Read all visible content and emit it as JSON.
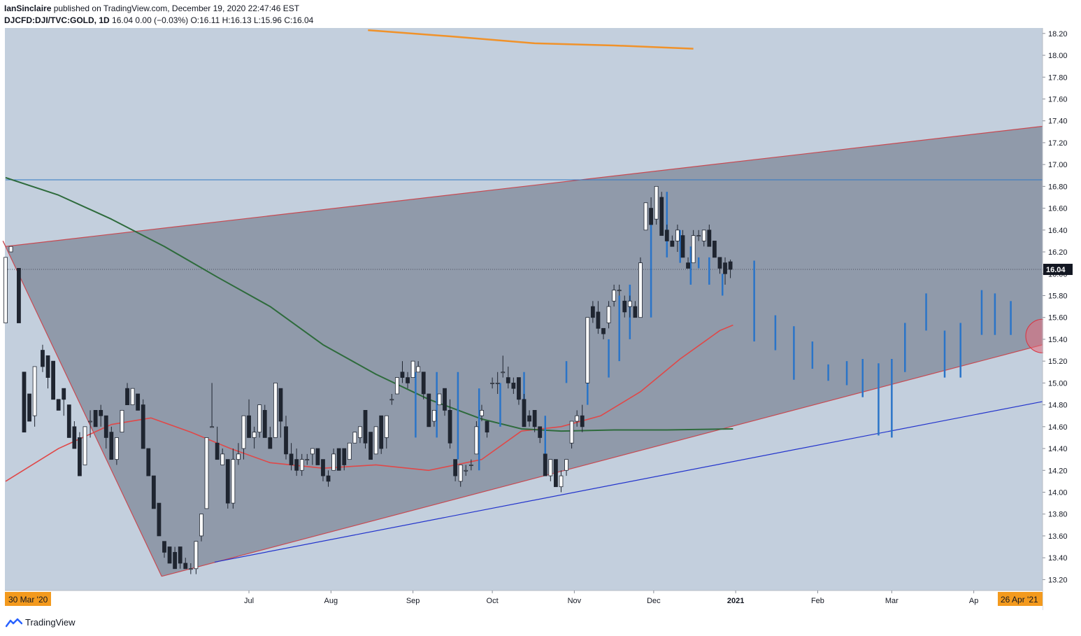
{
  "header": {
    "user": "IanSinclaire",
    "published": " published on TradingView.com, December 19, 2020 22:47:46 EST",
    "symbol": "DJCFD:DJI/TVC:GOLD, 1D",
    "ohlc_text": "16.04 0.00 (−0.03%) O:16.11 H:16.13 L:15.96 C:16.04"
  },
  "footer": {
    "brand": "TradingView"
  },
  "colors": {
    "background": "#c3cfdd",
    "channel_fill": "#8d97a6",
    "channel_edge": "#c74a52",
    "ma_fast": "#e04848",
    "ma_mid": "#2e6b3c",
    "ma_slow": "#f0922a",
    "hline": "#2f78c4",
    "support": "#2233cc",
    "projection": "#2a74c8",
    "candle_up": "#ffffff",
    "candle_down": "#1f2530",
    "price_label": "#131722",
    "date_label": "#f39a1e"
  },
  "chart_data": {
    "type": "candlestick",
    "title": "",
    "y_ticks": [
      "18.20",
      "18.00",
      "17.80",
      "17.60",
      "17.40",
      "17.20",
      "17.00",
      "16.80",
      "16.60",
      "16.40",
      "16.20",
      "16.00",
      "15.80",
      "15.60",
      "15.40",
      "15.20",
      "15.00",
      "14.80",
      "14.60",
      "14.40",
      "14.20",
      "14.00",
      "13.80",
      "13.60",
      "13.40",
      "13.20"
    ],
    "ylim": [
      13.1,
      18.25
    ],
    "x_ticks": [
      {
        "label": "Jul",
        "day": 92,
        "bold": false
      },
      {
        "label": "Aug",
        "day": 123,
        "bold": false
      },
      {
        "label": "Sep",
        "day": 154,
        "bold": false
      },
      {
        "label": "Oct",
        "day": 184,
        "bold": false
      },
      {
        "label": "Nov",
        "day": 215,
        "bold": false
      },
      {
        "label": "Dec",
        "day": 245,
        "bold": false
      },
      {
        "label": "2021",
        "day": 276,
        "bold": true
      },
      {
        "label": "Feb",
        "day": 307,
        "bold": false
      },
      {
        "label": "Mar",
        "day": 335,
        "bold": false
      },
      {
        "label": "Ap",
        "day": 366,
        "bold": false
      }
    ],
    "x_range_days": [
      0,
      392
    ],
    "start_label": "30 Mar '20",
    "end_label": "26 Apr '21",
    "last_price": "16.04",
    "horizontal_line": 16.86,
    "current_line": 16.04,
    "channel_upper": [
      [
        0,
        16.25
      ],
      [
        392,
        17.35
      ]
    ],
    "channel_lower": [
      [
        59,
        13.23
      ],
      [
        392,
        15.35
      ]
    ],
    "channel_apex": [
      [
        -1,
        16.3
      ],
      [
        59,
        13.23
      ]
    ],
    "support_line": [
      [
        79,
        13.36
      ],
      [
        392,
        14.83
      ]
    ],
    "candles": [
      [
        0,
        15.55,
        16.15,
        15.55,
        16.15
      ],
      [
        2,
        16.2,
        16.25,
        16.2,
        16.25
      ],
      [
        5,
        16.05,
        16.05,
        15.55,
        15.55
      ],
      [
        7,
        15.1,
        15.1,
        14.55,
        14.55
      ],
      [
        9,
        14.9,
        14.9,
        14.65,
        14.65
      ],
      [
        11,
        14.7,
        15.15,
        14.6,
        15.15
      ],
      [
        14,
        15.3,
        15.35,
        15.1,
        15.15
      ],
      [
        16,
        15.25,
        15.25,
        14.95,
        15.05
      ],
      [
        18,
        15.2,
        15.2,
        14.85,
        14.85
      ],
      [
        20,
        14.85,
        14.85,
        14.75,
        14.75
      ],
      [
        22,
        14.95,
        14.95,
        14.7,
        14.85
      ],
      [
        24,
        14.8,
        14.8,
        14.5,
        14.5
      ],
      [
        26,
        14.6,
        14.65,
        14.4,
        14.4
      ],
      [
        28,
        14.5,
        14.55,
        14.15,
        14.15
      ],
      [
        30,
        14.25,
        14.6,
        14.25,
        14.6
      ],
      [
        32,
        14.65,
        14.75,
        14.5,
        14.65
      ],
      [
        34,
        14.75,
        14.75,
        14.6,
        14.6
      ],
      [
        36,
        14.75,
        14.8,
        14.6,
        14.7
      ],
      [
        38,
        14.7,
        14.7,
        14.4,
        14.5
      ],
      [
        40,
        14.55,
        14.6,
        14.3,
        14.3
      ],
      [
        42,
        14.3,
        14.5,
        14.25,
        14.5
      ],
      [
        44,
        14.55,
        14.75,
        14.55,
        14.75
      ],
      [
        46,
        14.95,
        15.0,
        14.8,
        14.8
      ],
      [
        48,
        14.8,
        14.95,
        14.8,
        14.95
      ],
      [
        50,
        14.9,
        14.9,
        14.75,
        14.75
      ],
      [
        52,
        14.8,
        14.85,
        14.4,
        14.4
      ],
      [
        54,
        14.4,
        14.4,
        14.15,
        14.15
      ],
      [
        56,
        14.15,
        14.15,
        13.85,
        13.85
      ],
      [
        58,
        13.9,
        13.9,
        13.6,
        13.6
      ],
      [
        60,
        13.55,
        13.55,
        13.4,
        13.45
      ],
      [
        62,
        13.5,
        13.5,
        13.35,
        13.35
      ],
      [
        64,
        13.45,
        13.5,
        13.3,
        13.3
      ],
      [
        66,
        13.5,
        13.5,
        13.3,
        13.35
      ],
      [
        68,
        13.35,
        13.4,
        13.3,
        13.3
      ],
      [
        70,
        13.3,
        13.35,
        13.25,
        13.3
      ],
      [
        72,
        13.3,
        13.55,
        13.25,
        13.55
      ],
      [
        74,
        13.6,
        13.8,
        13.55,
        13.8
      ],
      [
        76,
        13.85,
        14.5,
        13.85,
        14.5
      ],
      [
        78,
        14.6,
        15.0,
        14.6,
        14.6
      ],
      [
        80,
        14.45,
        14.6,
        14.3,
        14.3
      ],
      [
        82,
        14.25,
        14.4,
        14.25,
        14.35
      ],
      [
        84,
        14.3,
        14.3,
        13.85,
        13.9
      ],
      [
        86,
        13.9,
        14.4,
        13.85,
        14.3
      ],
      [
        88,
        14.3,
        14.45,
        14.25,
        14.35
      ],
      [
        90,
        14.4,
        14.7,
        14.3,
        14.7
      ],
      [
        92,
        14.7,
        14.85,
        14.5,
        14.5
      ],
      [
        94,
        14.5,
        14.6,
        14.4,
        14.55
      ],
      [
        96,
        14.55,
        14.8,
        14.5,
        14.8
      ],
      [
        98,
        14.75,
        14.8,
        14.5,
        14.5
      ],
      [
        100,
        14.5,
        14.6,
        14.4,
        14.4
      ],
      [
        102,
        14.5,
        15.0,
        14.5,
        15.0
      ],
      [
        104,
        14.95,
        14.95,
        14.5,
        14.65
      ],
      [
        106,
        14.6,
        14.7,
        14.3,
        14.35
      ],
      [
        108,
        14.35,
        14.45,
        14.2,
        14.25
      ],
      [
        110,
        14.3,
        14.4,
        14.15,
        14.2
      ],
      [
        112,
        14.2,
        14.35,
        14.15,
        14.3
      ],
      [
        114,
        14.3,
        14.35,
        14.25,
        14.3
      ],
      [
        116,
        14.35,
        14.4,
        14.25,
        14.4
      ],
      [
        118,
        14.4,
        14.4,
        14.25,
        14.25
      ],
      [
        120,
        14.3,
        14.3,
        14.1,
        14.15
      ],
      [
        122,
        14.15,
        14.2,
        14.05,
        14.1
      ],
      [
        124,
        14.2,
        14.4,
        14.2,
        14.35
      ],
      [
        126,
        14.4,
        14.4,
        14.2,
        14.2
      ],
      [
        128,
        14.4,
        14.4,
        14.2,
        14.25
      ],
      [
        130,
        14.3,
        14.45,
        14.3,
        14.45
      ],
      [
        132,
        14.45,
        14.55,
        14.45,
        14.55
      ],
      [
        134,
        14.5,
        14.6,
        14.45,
        14.6
      ],
      [
        136,
        14.75,
        14.75,
        14.4,
        14.45
      ],
      [
        138,
        14.55,
        14.55,
        14.3,
        14.3
      ],
      [
        140,
        14.35,
        14.6,
        14.35,
        14.6
      ],
      [
        142,
        14.7,
        14.7,
        14.35,
        14.4
      ],
      [
        144,
        14.5,
        14.7,
        14.4,
        14.7
      ],
      [
        146,
        14.85,
        14.9,
        14.8,
        14.85
      ],
      [
        148,
        14.9,
        15.05,
        14.9,
        15.05
      ],
      [
        150,
        15.1,
        15.2,
        15.0,
        15.05
      ],
      [
        152,
        15.05,
        15.1,
        14.95,
        15.0
      ],
      [
        154,
        15.05,
        15.2,
        15.05,
        15.2
      ],
      [
        156,
        15.1,
        15.2,
        15.1,
        15.15
      ],
      [
        158,
        15.1,
        15.1,
        14.85,
        14.9
      ],
      [
        160,
        14.9,
        14.9,
        14.6,
        14.6
      ],
      [
        162,
        14.65,
        14.75,
        14.6,
        14.75
      ],
      [
        164,
        14.8,
        14.9,
        14.8,
        14.9
      ],
      [
        166,
        14.95,
        14.95,
        14.7,
        14.75
      ],
      [
        168,
        14.75,
        14.85,
        14.4,
        14.45
      ],
      [
        170,
        14.3,
        14.3,
        14.1,
        14.15
      ],
      [
        172,
        14.1,
        14.25,
        14.05,
        14.25
      ],
      [
        174,
        14.2,
        14.25,
        14.15,
        14.2
      ],
      [
        176,
        14.25,
        14.3,
        14.2,
        14.25
      ],
      [
        178,
        14.35,
        14.65,
        14.35,
        14.6
      ],
      [
        180,
        14.7,
        14.8,
        14.65,
        14.75
      ],
      [
        182,
        14.65,
        14.65,
        14.5,
        14.55
      ],
      [
        184,
        15.0,
        15.05,
        14.95,
        15.0
      ],
      [
        186,
        15.0,
        15.1,
        14.9,
        15.0
      ],
      [
        188,
        15.1,
        15.25,
        15.05,
        15.1
      ],
      [
        190,
        15.05,
        15.15,
        14.95,
        15.0
      ],
      [
        192,
        15.0,
        15.05,
        14.9,
        14.95
      ],
      [
        194,
        15.05,
        15.05,
        14.8,
        14.85
      ],
      [
        196,
        14.85,
        14.9,
        14.6,
        14.6
      ],
      [
        198,
        14.7,
        14.75,
        14.6,
        14.65
      ],
      [
        200,
        14.75,
        14.75,
        14.55,
        14.6
      ],
      [
        202,
        14.6,
        14.6,
        14.45,
        14.5
      ],
      [
        204,
        14.35,
        14.35,
        14.15,
        14.15
      ],
      [
        206,
        14.15,
        14.3,
        14.1,
        14.3
      ],
      [
        208,
        14.3,
        14.3,
        14.05,
        14.05
      ],
      [
        210,
        14.05,
        14.2,
        14.0,
        14.15
      ],
      [
        212,
        14.2,
        14.3,
        14.15,
        14.3
      ],
      [
        214,
        14.45,
        14.65,
        14.4,
        14.65
      ],
      [
        216,
        14.65,
        14.75,
        14.6,
        14.7
      ],
      [
        218,
        14.7,
        14.8,
        14.55,
        14.6
      ],
      [
        220,
        15.0,
        15.6,
        15.0,
        15.6
      ],
      [
        222,
        15.7,
        15.75,
        15.55,
        15.6
      ],
      [
        224,
        15.65,
        15.75,
        15.45,
        15.5
      ],
      [
        226,
        15.5,
        15.5,
        15.4,
        15.45
      ],
      [
        228,
        15.55,
        15.75,
        15.5,
        15.7
      ],
      [
        230,
        15.75,
        15.9,
        15.7,
        15.85
      ],
      [
        232,
        15.85,
        15.9,
        15.8,
        15.85
      ],
      [
        234,
        15.75,
        15.8,
        15.6,
        15.65
      ],
      [
        236,
        15.7,
        15.8,
        15.6,
        15.75
      ],
      [
        238,
        15.7,
        15.75,
        15.6,
        15.6
      ],
      [
        240,
        15.6,
        16.15,
        15.6,
        16.1
      ],
      [
        242,
        16.4,
        16.65,
        16.4,
        16.65
      ],
      [
        244,
        16.6,
        16.7,
        16.45,
        16.45
      ],
      [
        246,
        16.5,
        16.8,
        16.45,
        16.8
      ],
      [
        248,
        16.7,
        16.75,
        16.35,
        16.35
      ],
      [
        250,
        16.4,
        16.45,
        16.3,
        16.3
      ],
      [
        252,
        16.3,
        16.35,
        16.25,
        16.25
      ],
      [
        254,
        16.3,
        16.45,
        16.2,
        16.4
      ],
      [
        256,
        16.35,
        16.4,
        16.15,
        16.15
      ],
      [
        258,
        16.1,
        16.15,
        16.05,
        16.05
      ],
      [
        260,
        16.1,
        16.4,
        16.1,
        16.35
      ],
      [
        262,
        16.35,
        16.4,
        16.3,
        16.35
      ],
      [
        264,
        16.3,
        16.4,
        16.25,
        16.4
      ],
      [
        266,
        16.4,
        16.45,
        16.25,
        16.25
      ],
      [
        268,
        16.3,
        16.3,
        16.15,
        16.15
      ],
      [
        270,
        16.15,
        16.15,
        16.0,
        16.05
      ],
      [
        272,
        16.1,
        16.15,
        15.9,
        16.0
      ],
      [
        274,
        16.11,
        16.13,
        15.96,
        16.04
      ]
    ],
    "projection_bars": [
      [
        155,
        14.5,
        15.1
      ],
      [
        163,
        14.5,
        15.1
      ],
      [
        171,
        14.3,
        15.1
      ],
      [
        179,
        14.2,
        14.95
      ],
      [
        187,
        14.6,
        15.0
      ],
      [
        196,
        14.65,
        15.1
      ],
      [
        204,
        14.35,
        14.7
      ],
      [
        212,
        15.0,
        15.2
      ],
      [
        220,
        14.8,
        15.25
      ],
      [
        228,
        15.05,
        15.4
      ],
      [
        232,
        15.2,
        15.8
      ],
      [
        236,
        15.4,
        15.9
      ],
      [
        244,
        15.6,
        16.55
      ],
      [
        250,
        16.15,
        16.75
      ],
      [
        255,
        16.1,
        16.4
      ],
      [
        259,
        15.9,
        16.25
      ],
      [
        262,
        16.05,
        16.15
      ],
      [
        266,
        15.9,
        16.15
      ],
      [
        271,
        15.8,
        16.0
      ],
      [
        283,
        15.38,
        16.12
      ],
      [
        291,
        15.3,
        15.62
      ],
      [
        298,
        15.03,
        15.52
      ],
      [
        305,
        15.13,
        15.38
      ],
      [
        311,
        15.02,
        15.17
      ],
      [
        318,
        14.98,
        15.2
      ],
      [
        324,
        14.87,
        15.22
      ],
      [
        330,
        14.52,
        15.18
      ],
      [
        335,
        14.5,
        15.22
      ],
      [
        340,
        15.1,
        15.55
      ],
      [
        348,
        15.48,
        15.82
      ],
      [
        355,
        15.05,
        15.48
      ],
      [
        361,
        15.05,
        15.55
      ],
      [
        369,
        15.44,
        15.85
      ],
      [
        374,
        15.44,
        15.82
      ],
      [
        380,
        15.44,
        15.75
      ]
    ],
    "ma_fast": [
      [
        0,
        14.1
      ],
      [
        20,
        14.4
      ],
      [
        40,
        14.62
      ],
      [
        55,
        14.68
      ],
      [
        70,
        14.55
      ],
      [
        85,
        14.4
      ],
      [
        100,
        14.27
      ],
      [
        120,
        14.22
      ],
      [
        140,
        14.25
      ],
      [
        160,
        14.2
      ],
      [
        180,
        14.3
      ],
      [
        195,
        14.56
      ],
      [
        210,
        14.6
      ],
      [
        225,
        14.7
      ],
      [
        240,
        14.92
      ],
      [
        255,
        15.22
      ],
      [
        270,
        15.48
      ],
      [
        275,
        15.53
      ]
    ],
    "ma_mid": [
      [
        0,
        16.88
      ],
      [
        20,
        16.72
      ],
      [
        40,
        16.5
      ],
      [
        60,
        16.25
      ],
      [
        80,
        15.97
      ],
      [
        100,
        15.7
      ],
      [
        120,
        15.35
      ],
      [
        140,
        15.08
      ],
      [
        160,
        14.85
      ],
      [
        180,
        14.67
      ],
      [
        195,
        14.58
      ],
      [
        210,
        14.56
      ],
      [
        230,
        14.57
      ],
      [
        250,
        14.57
      ],
      [
        275,
        14.58
      ]
    ],
    "ma_slow": [
      [
        137,
        18.23
      ],
      [
        170,
        18.17
      ],
      [
        200,
        18.11
      ],
      [
        230,
        18.09
      ],
      [
        260,
        18.06
      ]
    ],
    "circle_marker": {
      "day": 392,
      "value": 15.43
    }
  }
}
